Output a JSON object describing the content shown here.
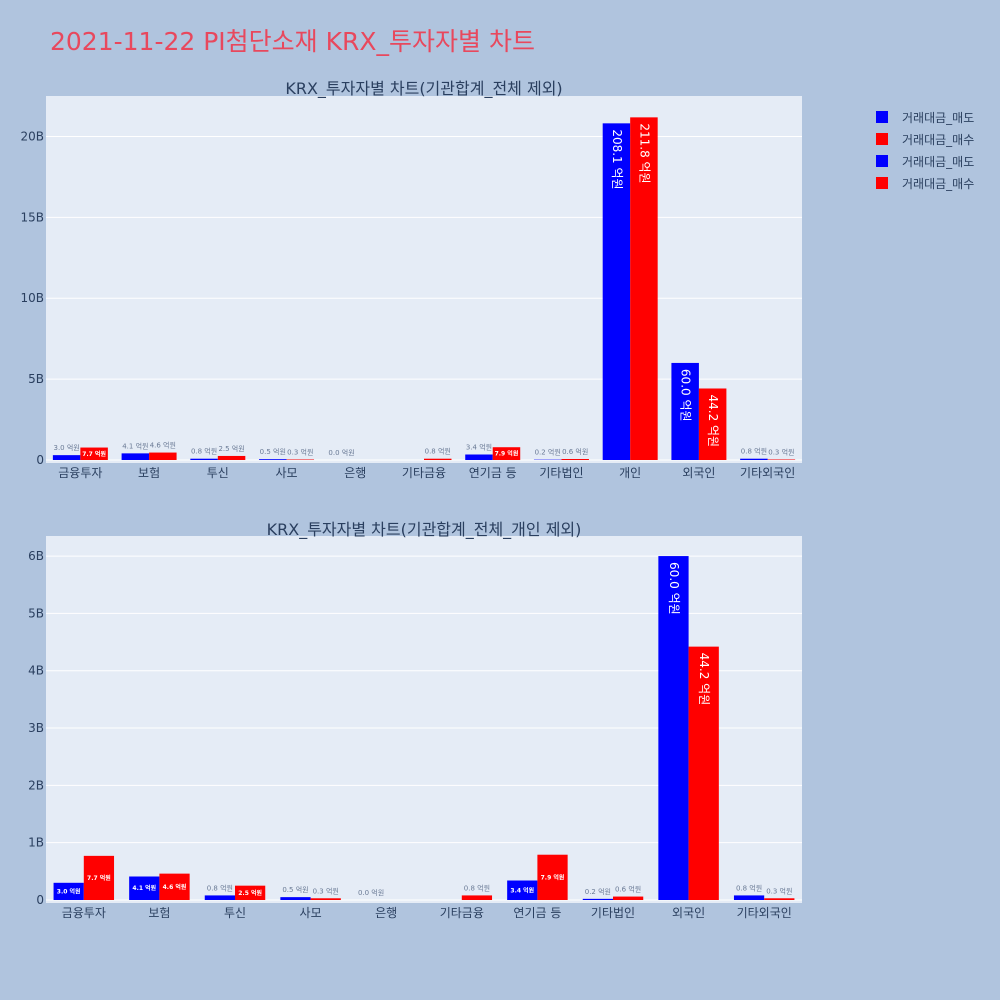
{
  "title": "2021-11-22 PI첨단소재 KRX_투자자별 차트",
  "colors": {
    "sell": "#0000ff",
    "buy": "#ff0000",
    "plot_bg": "#e5ecf6",
    "page_bg": "#b0c4de"
  },
  "legend": [
    {
      "label": "거래대금_매도",
      "color": "#0000ff"
    },
    {
      "label": "거래대금_매수",
      "color": "#ff0000"
    },
    {
      "label": "거래대금_매도",
      "color": "#0000ff"
    },
    {
      "label": "거래대금_매수",
      "color": "#ff0000"
    }
  ],
  "chart_data": [
    {
      "type": "bar",
      "title": "KRX_투자자별 차트(기관합계_전체 제외)",
      "categories": [
        "금융투자",
        "보험",
        "투신",
        "사모",
        "은행",
        "기타금융",
        "연기금 등",
        "기타법인",
        "개인",
        "외국인",
        "기타외국인"
      ],
      "ylim": [
        0,
        22.5
      ],
      "yticks": [
        0,
        5,
        10,
        15,
        20
      ],
      "ytick_labels": [
        "0",
        "5B",
        "10B",
        "15B",
        "20B"
      ],
      "grid": true,
      "series": [
        {
          "name": "거래대금_매도",
          "color": "#0000ff",
          "values": [
            0.3,
            0.41,
            0.08,
            0.05,
            0.0,
            0.0,
            0.34,
            0.02,
            20.81,
            6.0,
            0.08
          ],
          "labels": [
            "3.0 억원",
            "4.1 억원",
            "0.8 억원",
            "0.5 억원",
            "0.0 억원",
            "",
            "3.4 억원",
            "0.2 억원",
            "208.1 억원",
            "60.0 억원",
            "0.8 억원"
          ]
        },
        {
          "name": "거래대금_매수",
          "color": "#ff0000",
          "values": [
            0.77,
            0.46,
            0.25,
            0.03,
            0.0,
            0.08,
            0.79,
            0.06,
            21.18,
            4.42,
            0.03
          ],
          "labels": [
            "7.7 억원",
            "4.6 억원",
            "2.5 억원",
            "0.3 억원",
            "",
            "0.8 억원",
            "7.9 억원",
            "0.6 억원",
            "211.8 억원",
            "44.2 억원",
            "0.3 억원"
          ]
        }
      ]
    },
    {
      "type": "bar",
      "title": "KRX_투자자별 차트(기관합계_전체_개인 제외)",
      "categories": [
        "금융투자",
        "보험",
        "투신",
        "사모",
        "은행",
        "기타금융",
        "연기금 등",
        "기타법인",
        "외국인",
        "기타외국인"
      ],
      "ylim": [
        0,
        6.35
      ],
      "yticks": [
        0,
        1,
        2,
        3,
        4,
        5,
        6
      ],
      "ytick_labels": [
        "0",
        "1B",
        "2B",
        "3B",
        "4B",
        "5B",
        "6B"
      ],
      "grid": true,
      "series": [
        {
          "name": "거래대금_매도",
          "color": "#0000ff",
          "values": [
            0.3,
            0.41,
            0.08,
            0.05,
            0.0,
            0.0,
            0.34,
            0.02,
            6.0,
            0.08
          ],
          "labels": [
            "3.0 억원",
            "4.1 억원",
            "0.8 억원",
            "0.5 억원",
            "0.0 억원",
            "",
            "3.4 억원",
            "0.2 억원",
            "60.0 억원",
            "0.8 억원"
          ]
        },
        {
          "name": "거래대금_매수",
          "color": "#ff0000",
          "values": [
            0.77,
            0.46,
            0.25,
            0.03,
            0.0,
            0.08,
            0.79,
            0.06,
            4.42,
            0.03
          ],
          "labels": [
            "7.7 억원",
            "4.6 억원",
            "2.5 억원",
            "0.3 억원",
            "",
            "0.8 억원",
            "7.9 억원",
            "0.6 억원",
            "44.2 억원",
            "0.3 억원"
          ]
        }
      ]
    }
  ]
}
